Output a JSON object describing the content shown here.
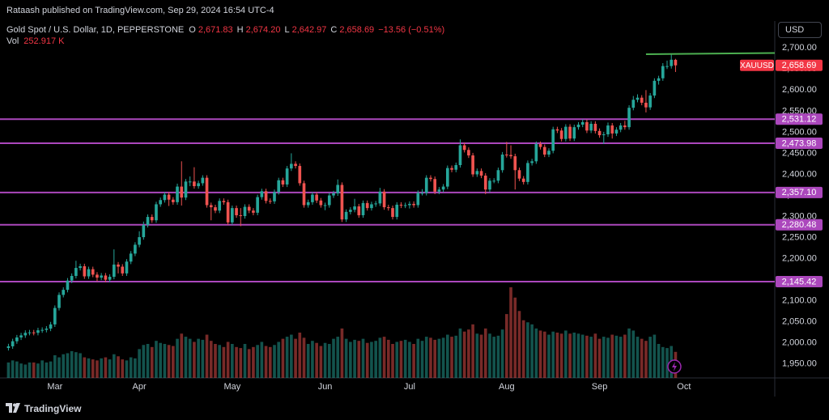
{
  "header": {
    "publisher": "Rataash published on TradingView.com, Sep 29, 2024 16:54 UTC-4",
    "currency": "USD",
    "brand": "TradingView"
  },
  "legend": {
    "symbol": "Gold Spot / U.S. Dollar, 1D, PEPPERSTONE",
    "ohlc": [
      {
        "label": "O",
        "value": "2,671.83"
      },
      {
        "label": "H",
        "value": "2,674.20"
      },
      {
        "label": "L",
        "value": "2,642.97"
      },
      {
        "label": "C",
        "value": "2,658.69"
      }
    ],
    "change": "−13.56 (−0.51%)",
    "volume_label": "Vol",
    "volume_value": "252.917 K"
  },
  "chart_data": {
    "type": "candlestick",
    "up_color": "#26a69a",
    "down_color": "#ef5350",
    "open": [
      1988,
      1992,
      2004,
      2013,
      2018,
      2024,
      2025,
      2024,
      2030,
      2031,
      2034,
      2044,
      2083,
      2114,
      2126,
      2148,
      2159,
      2178,
      2182,
      2158,
      2175,
      2162,
      2155,
      2160,
      2150,
      2157,
      2186,
      2181,
      2165,
      2193,
      2212,
      2233,
      2251,
      2280,
      2299,
      2291,
      2329,
      2339,
      2352,
      2340,
      2334,
      2371,
      2345,
      2383,
      2383,
      2372,
      2379,
      2392,
      2327,
      2322,
      2314,
      2337,
      2334,
      2286,
      2320,
      2303,
      2301,
      2323,
      2314,
      2309,
      2346,
      2360,
      2337,
      2336,
      2358,
      2386,
      2376,
      2414,
      2425,
      2420,
      2379,
      2327,
      2334,
      2352,
      2338,
      2327,
      2327,
      2350,
      2355,
      2375,
      2293,
      2311,
      2316,
      2324,
      2303,
      2332,
      2320,
      2329,
      2331,
      2359,
      2322,
      2320,
      2299,
      2328,
      2326,
      2327,
      2330,
      2327,
      2356,
      2356,
      2392,
      2389,
      2359,
      2364,
      2371,
      2415,
      2411,
      2422,
      2469,
      2458,
      2445,
      2400,
      2408,
      2397,
      2364,
      2385,
      2385,
      2410,
      2447,
      2446,
      2443,
      2410,
      2390,
      2382,
      2427,
      2431,
      2472,
      2465,
      2447,
      2456,
      2507,
      2504,
      2484,
      2513,
      2485,
      2512,
      2518,
      2524,
      2504,
      2520,
      2503,
      2493,
      2495,
      2516,
      2497,
      2506,
      2516,
      2512,
      2558,
      2577,
      2582,
      2570,
      2559,
      2587,
      2622,
      2628,
      2657,
      2657,
      2671.83
    ],
    "high": [
      1998,
      2010,
      2019,
      2024,
      2030,
      2031,
      2031,
      2036,
      2037,
      2040,
      2050,
      2089,
      2120,
      2132,
      2154,
      2165,
      2195,
      2188,
      2188,
      2181,
      2181,
      2168,
      2166,
      2166,
      2163,
      2222,
      2192,
      2187,
      2199,
      2218,
      2239,
      2265,
      2288,
      2305,
      2305,
      2335,
      2345,
      2358,
      2358,
      2346,
      2378,
      2431,
      2389,
      2395,
      2417,
      2385,
      2398,
      2398,
      2333,
      2328,
      2343,
      2343,
      2340,
      2326,
      2326,
      2320,
      2329,
      2329,
      2320,
      2352,
      2366,
      2366,
      2343,
      2364,
      2392,
      2392,
      2420,
      2450,
      2431,
      2426,
      2385,
      2340,
      2358,
      2358,
      2344,
      2333,
      2356,
      2361,
      2388,
      2381,
      2317,
      2322,
      2342,
      2330,
      2338,
      2338,
      2335,
      2337,
      2368,
      2365,
      2328,
      2326,
      2334,
      2334,
      2333,
      2336,
      2336,
      2362,
      2365,
      2398,
      2398,
      2395,
      2370,
      2377,
      2421,
      2421,
      2428,
      2483,
      2475,
      2464,
      2451,
      2414,
      2414,
      2403,
      2391,
      2391,
      2416,
      2453,
      2477,
      2469,
      2449,
      2416,
      2396,
      2433,
      2437,
      2478,
      2478,
      2471,
      2462,
      2513,
      2513,
      2510,
      2519,
      2519,
      2518,
      2524,
      2531,
      2530,
      2526,
      2526,
      2509,
      2501,
      2523,
      2522,
      2512,
      2522,
      2527,
      2564,
      2586,
      2590,
      2588,
      2600,
      2593,
      2628,
      2634,
      2664,
      2670,
      2686,
      2674.2
    ],
    "low": [
      1982,
      1986,
      1998,
      2007,
      2012,
      2018,
      2018,
      2018,
      2024,
      2025,
      2028,
      2038,
      2077,
      2108,
      2120,
      2142,
      2153,
      2172,
      2152,
      2152,
      2156,
      2146,
      2149,
      2144,
      2144,
      2151,
      2165,
      2159,
      2159,
      2187,
      2206,
      2227,
      2245,
      2274,
      2285,
      2285,
      2323,
      2333,
      2325,
      2328,
      2328,
      2326,
      2339,
      2372,
      2366,
      2366,
      2373,
      2321,
      2291,
      2308,
      2308,
      2328,
      2280,
      2280,
      2297,
      2277,
      2295,
      2308,
      2303,
      2303,
      2340,
      2331,
      2330,
      2330,
      2352,
      2370,
      2370,
      2408,
      2414,
      2373,
      2321,
      2321,
      2328,
      2332,
      2321,
      2315,
      2321,
      2344,
      2349,
      2287,
      2287,
      2305,
      2310,
      2297,
      2297,
      2314,
      2314,
      2323,
      2325,
      2316,
      2314,
      2293,
      2293,
      2320,
      2320,
      2319,
      2321,
      2321,
      2350,
      2350,
      2383,
      2353,
      2353,
      2358,
      2365,
      2405,
      2405,
      2416,
      2452,
      2439,
      2394,
      2394,
      2391,
      2353,
      2358,
      2379,
      2379,
      2404,
      2440,
      2437,
      2364,
      2384,
      2376,
      2376,
      2421,
      2425,
      2459,
      2441,
      2441,
      2450,
      2498,
      2478,
      2478,
      2479,
      2479,
      2506,
      2512,
      2498,
      2498,
      2497,
      2487,
      2472,
      2489,
      2485,
      2491,
      2500,
      2506,
      2506,
      2552,
      2571,
      2564,
      2547,
      2553,
      2581,
      2613,
      2622,
      2650,
      2651,
      2642.97
    ],
    "close": [
      1992,
      2004,
      2013,
      2018,
      2024,
      2025,
      2024,
      2030,
      2031,
      2034,
      2044,
      2083,
      2114,
      2126,
      2148,
      2159,
      2178,
      2182,
      2158,
      2175,
      2162,
      2155,
      2160,
      2150,
      2157,
      2186,
      2181,
      2165,
      2193,
      2212,
      2233,
      2251,
      2280,
      2299,
      2291,
      2329,
      2339,
      2352,
      2340,
      2334,
      2371,
      2345,
      2383,
      2383,
      2372,
      2379,
      2392,
      2327,
      2322,
      2314,
      2337,
      2334,
      2286,
      2320,
      2303,
      2301,
      2323,
      2314,
      2309,
      2346,
      2360,
      2337,
      2336,
      2358,
      2386,
      2376,
      2414,
      2425,
      2420,
      2379,
      2327,
      2334,
      2352,
      2338,
      2327,
      2327,
      2350,
      2355,
      2375,
      2293,
      2311,
      2316,
      2324,
      2303,
      2332,
      2320,
      2329,
      2331,
      2359,
      2322,
      2320,
      2299,
      2328,
      2326,
      2327,
      2330,
      2327,
      2356,
      2356,
      2392,
      2389,
      2359,
      2364,
      2371,
      2415,
      2411,
      2422,
      2469,
      2458,
      2445,
      2400,
      2408,
      2397,
      2364,
      2385,
      2385,
      2410,
      2447,
      2446,
      2443,
      2410,
      2390,
      2382,
      2427,
      2431,
      2472,
      2465,
      2447,
      2456,
      2507,
      2504,
      2484,
      2513,
      2485,
      2512,
      2518,
      2524,
      2504,
      2520,
      2503,
      2493,
      2495,
      2516,
      2497,
      2506,
      2516,
      2512,
      2558,
      2577,
      2582,
      2570,
      2559,
      2587,
      2622,
      2628,
      2657,
      2657,
      2672,
      2658.69
    ],
    "volume": [
      150,
      170,
      160,
      140,
      130,
      150,
      150,
      140,
      170,
      150,
      160,
      220,
      200,
      230,
      240,
      260,
      250,
      240,
      200,
      190,
      180,
      170,
      190,
      200,
      180,
      230,
      210,
      180,
      170,
      200,
      190,
      280,
      320,
      330,
      300,
      360,
      340,
      330,
      320,
      310,
      380,
      430,
      400,
      380,
      350,
      380,
      370,
      420,
      360,
      330,
      320,
      300,
      350,
      330,
      300,
      290,
      330,
      280,
      300,
      320,
      350,
      310,
      300,
      320,
      350,
      380,
      400,
      420,
      380,
      440,
      390,
      330,
      360,
      340,
      310,
      340,
      330,
      380,
      400,
      480,
      380,
      350,
      370,
      360,
      380,
      340,
      350,
      360,
      390,
      400,
      370,
      330,
      350,
      360,
      370,
      350,
      330,
      380,
      360,
      400,
      390,
      370,
      380,
      390,
      420,
      400,
      410,
      480,
      450,
      470,
      520,
      430,
      420,
      480,
      430,
      400,
      410,
      470,
      620,
      880,
      780,
      650,
      560,
      540,
      520,
      480,
      460,
      450,
      420,
      450,
      440,
      430,
      460,
      430,
      440,
      430,
      420,
      410,
      400,
      430,
      380,
      400,
      390,
      420,
      410,
      400,
      420,
      480,
      460,
      400,
      380,
      360,
      400,
      420,
      330,
      300,
      290,
      310,
      252.917
    ],
    "xlim": [
      -2,
      181.5
    ],
    "xticks": [
      {
        "value": 11,
        "label": "Mar"
      },
      {
        "value": 31,
        "label": "Apr"
      },
      {
        "value": 53,
        "label": "May"
      },
      {
        "value": 75,
        "label": "Jun"
      },
      {
        "value": 95,
        "label": "Jul"
      },
      {
        "value": 118,
        "label": "Aug"
      },
      {
        "value": 140,
        "label": "Sep"
      },
      {
        "value": 160,
        "label": "Oct"
      }
    ],
    "ylim": [
      1917,
      2760
    ],
    "yticks": [
      {
        "value": 1950,
        "label": "1,950.00"
      },
      {
        "value": 2000,
        "label": "2,000.00"
      },
      {
        "value": 2050,
        "label": "2,050.00"
      },
      {
        "value": 2100,
        "label": "2,100.00"
      },
      {
        "value": 2150,
        "label": "2,150.00"
      },
      {
        "value": 2200,
        "label": "2,200.00"
      },
      {
        "value": 2250,
        "label": "2,250.00"
      },
      {
        "value": 2300,
        "label": "2,300.00"
      },
      {
        "value": 2350,
        "label": "2,350.00"
      },
      {
        "value": 2400,
        "label": "2,400.00"
      },
      {
        "value": 2450,
        "label": "2,450.00"
      },
      {
        "value": 2500,
        "label": "2,500.00"
      },
      {
        "value": 2550,
        "label": "2,550.00"
      },
      {
        "value": 2600,
        "label": "2,600.00"
      },
      {
        "value": 2650,
        "label": "2,650.00"
      },
      {
        "value": 2700,
        "label": "2,700.00"
      }
    ],
    "grid": false,
    "level_color": "#ab47bc",
    "levels": [
      {
        "value": 2531.12,
        "label": "2,531.12"
      },
      {
        "value": 2473.98,
        "label": "2,473.98"
      },
      {
        "value": 2357.1,
        "label": "2,357.10"
      },
      {
        "value": 2280.48,
        "label": "2,280.48"
      },
      {
        "value": 2145.42,
        "label": "2,145.42"
      }
    ],
    "trend_line": {
      "color": "#4caf50",
      "x": [
        151,
        181.5
      ],
      "y": [
        2685,
        2688
      ]
    },
    "last_price": {
      "symbol": "XAUUSD",
      "value": 2658.69,
      "label": "2,658.69",
      "color": "#f23645"
    }
  }
}
